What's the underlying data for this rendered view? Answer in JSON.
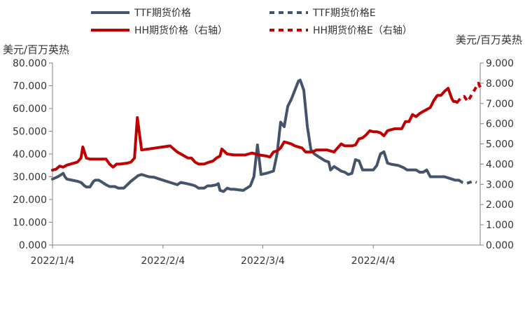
{
  "chart_data": {
    "type": "line",
    "legend": {
      "placement": "top",
      "entries": [
        {
          "label": "TTF期货价格",
          "color": "#44546A",
          "dashed": false
        },
        {
          "label": "TTF期货价格E",
          "color": "#44546A",
          "dashed": true
        },
        {
          "label": "HH期货价格（右轴）",
          "color": "#C00000",
          "dashed": false
        },
        {
          "label": "HH期货价格E（右轴）",
          "color": "#C00000",
          "dashed": true
        }
      ]
    },
    "ylabel_left": "美元/百万英热",
    "ylabel_right": "美元/百万英热",
    "ylim_left": [
      0,
      80
    ],
    "ylim_right": [
      0,
      9
    ],
    "yticks_left": [
      "0.000",
      "10.000",
      "20.000",
      "30.000",
      "40.000",
      "50.000",
      "60.000",
      "70.000",
      "80.000"
    ],
    "yticks_right": [
      "0.000",
      "1.000",
      "2.000",
      "3.000",
      "4.000",
      "5.000",
      "6.000",
      "7.000",
      "8.000",
      "9.000"
    ],
    "xlim_days": [
      0,
      120
    ],
    "xticks": [
      {
        "label": "2022/1/4",
        "day": 0
      },
      {
        "label": "2022/2/4",
        "day": 31
      },
      {
        "label": "2022/3/4",
        "day": 59
      },
      {
        "label": "2022/4/4",
        "day": 90
      }
    ],
    "grid": false,
    "series": [
      {
        "name": "TTF期货价格",
        "axis": "left",
        "color": "#44546A",
        "dashed": false,
        "points": [
          [
            0,
            29
          ],
          [
            1.5,
            30
          ],
          [
            2.5,
            31
          ],
          [
            3,
            31.5
          ],
          [
            3.5,
            30
          ],
          [
            4,
            29
          ],
          [
            7,
            28
          ],
          [
            8,
            27.5
          ],
          [
            9,
            26
          ],
          [
            9.5,
            25.5
          ],
          [
            10.5,
            25.5
          ],
          [
            11.5,
            28
          ],
          [
            12,
            28.5
          ],
          [
            13,
            28.5
          ],
          [
            14,
            27.5
          ],
          [
            15,
            26.5
          ],
          [
            16,
            25.7
          ],
          [
            17.5,
            25.7
          ],
          [
            18.5,
            25
          ],
          [
            20,
            25
          ],
          [
            22,
            28
          ],
          [
            24,
            30.5
          ],
          [
            25,
            31
          ],
          [
            26,
            30.5
          ],
          [
            27,
            30
          ],
          [
            28.5,
            29.8
          ],
          [
            30,
            29
          ],
          [
            33,
            27.5
          ],
          [
            35,
            26.5
          ],
          [
            36,
            27.5
          ],
          [
            37,
            27.2
          ],
          [
            39,
            26.5
          ],
          [
            40,
            26
          ],
          [
            41,
            25
          ],
          [
            42.5,
            25
          ],
          [
            43.5,
            26
          ],
          [
            44.5,
            26
          ],
          [
            46,
            26.5
          ],
          [
            46.5,
            27
          ],
          [
            47,
            24
          ],
          [
            48,
            23.5
          ],
          [
            49,
            25
          ],
          [
            50,
            24.5
          ],
          [
            51,
            24.5
          ],
          [
            53.5,
            24
          ],
          [
            54.5,
            25
          ],
          [
            55.5,
            26
          ],
          [
            56.5,
            30
          ],
          [
            57.5,
            44
          ],
          [
            58.5,
            31
          ],
          [
            60,
            31.5
          ],
          [
            61,
            32
          ],
          [
            62,
            32.5
          ],
          [
            63,
            40
          ],
          [
            64,
            54
          ],
          [
            65,
            52
          ],
          [
            66,
            61
          ],
          [
            67,
            64
          ],
          [
            68,
            68
          ],
          [
            69,
            72
          ],
          [
            69.5,
            72.5
          ],
          [
            70.5,
            68
          ],
          [
            71.5,
            52
          ],
          [
            72.5,
            42
          ],
          [
            73.5,
            40
          ],
          [
            74.5,
            39
          ],
          [
            75.5,
            38
          ],
          [
            76.5,
            37
          ],
          [
            77.5,
            36.5
          ],
          [
            78,
            33
          ],
          [
            79,
            34.5
          ],
          [
            80,
            33.5
          ],
          [
            81,
            32.5
          ],
          [
            82,
            32
          ],
          [
            83,
            31
          ],
          [
            84,
            31.5
          ],
          [
            85,
            37.5
          ],
          [
            86,
            37
          ],
          [
            87,
            33
          ],
          [
            88,
            33
          ],
          [
            89,
            33
          ],
          [
            90,
            33
          ],
          [
            91,
            35
          ],
          [
            92,
            40
          ],
          [
            93,
            41
          ],
          [
            94,
            36
          ],
          [
            95,
            35.5
          ],
          [
            97,
            35
          ],
          [
            98.5,
            34
          ],
          [
            99.5,
            33
          ],
          [
            101,
            33
          ],
          [
            102,
            33
          ],
          [
            103,
            32
          ],
          [
            104,
            32
          ],
          [
            105,
            33
          ],
          [
            106,
            30
          ],
          [
            107,
            30
          ],
          [
            108,
            30
          ],
          [
            109,
            30
          ],
          [
            110,
            30
          ],
          [
            111,
            29.5
          ],
          [
            112,
            29
          ],
          [
            113,
            28.5
          ],
          [
            114,
            28.5
          ]
        ]
      },
      {
        "name": "TTF期货价格E",
        "axis": "left",
        "color": "#44546A",
        "dashed": true,
        "points": [
          [
            114,
            28.5
          ],
          [
            115,
            27.5
          ],
          [
            116,
            27
          ],
          [
            117,
            27.5
          ],
          [
            118,
            28
          ],
          [
            119,
            27.5
          ]
        ]
      },
      {
        "name": "HH期货价格（右轴）",
        "axis": "right",
        "color": "#C00000",
        "dashed": false,
        "points": [
          [
            0,
            3.7
          ],
          [
            1,
            3.75
          ],
          [
            2,
            3.9
          ],
          [
            3,
            3.85
          ],
          [
            4,
            3.95
          ],
          [
            5,
            4.0
          ],
          [
            7,
            4.1
          ],
          [
            8,
            4.3
          ],
          [
            8.5,
            4.85
          ],
          [
            9.5,
            4.3
          ],
          [
            10.5,
            4.25
          ],
          [
            12,
            4.25
          ],
          [
            14,
            4.25
          ],
          [
            15,
            4.25
          ],
          [
            16,
            4.0
          ],
          [
            17,
            3.85
          ],
          [
            18,
            4.0
          ],
          [
            19,
            4.0
          ],
          [
            21,
            4.05
          ],
          [
            22,
            4.1
          ],
          [
            23,
            4.3
          ],
          [
            23.8,
            6.3
          ],
          [
            25,
            4.7
          ],
          [
            27,
            4.75
          ],
          [
            29,
            4.8
          ],
          [
            31,
            4.85
          ],
          [
            33,
            4.9
          ],
          [
            35,
            4.6
          ],
          [
            36,
            4.5
          ],
          [
            38,
            4.3
          ],
          [
            39,
            4.3
          ],
          [
            40,
            4.1
          ],
          [
            41,
            4.0
          ],
          [
            42.5,
            4.0
          ],
          [
            44,
            4.1
          ],
          [
            45,
            4.15
          ],
          [
            46,
            4.3
          ],
          [
            47,
            4.4
          ],
          [
            47.5,
            4.75
          ],
          [
            49,
            4.5
          ],
          [
            51,
            4.45
          ],
          [
            54,
            4.45
          ],
          [
            55,
            4.5
          ],
          [
            56,
            4.55
          ],
          [
            57,
            4.5
          ],
          [
            58,
            4.45
          ],
          [
            60,
            4.4
          ],
          [
            61,
            4.35
          ],
          [
            62,
            4.6
          ],
          [
            63,
            4.65
          ],
          [
            64,
            4.8
          ],
          [
            65,
            5.1
          ],
          [
            66,
            5.05
          ],
          [
            67,
            5.0
          ],
          [
            68,
            4.9
          ],
          [
            69,
            4.85
          ],
          [
            70,
            4.8
          ],
          [
            71,
            4.6
          ],
          [
            72,
            4.6
          ],
          [
            73,
            4.6
          ],
          [
            74,
            4.7
          ],
          [
            75,
            4.7
          ],
          [
            76,
            4.7
          ],
          [
            77,
            4.7
          ],
          [
            78,
            4.65
          ],
          [
            79,
            4.6
          ],
          [
            80,
            4.8
          ],
          [
            81,
            5.0
          ],
          [
            82,
            4.9
          ],
          [
            83,
            4.9
          ],
          [
            84,
            4.9
          ],
          [
            85,
            4.95
          ],
          [
            86,
            5.25
          ],
          [
            87,
            5.3
          ],
          [
            88,
            5.45
          ],
          [
            89,
            5.65
          ],
          [
            90,
            5.6
          ],
          [
            91,
            5.6
          ],
          [
            92,
            5.55
          ],
          [
            93,
            5.4
          ],
          [
            94,
            5.65
          ],
          [
            95,
            5.7
          ],
          [
            96,
            5.75
          ],
          [
            97,
            5.75
          ],
          [
            98,
            5.75
          ],
          [
            99,
            6.1
          ],
          [
            100,
            6.1
          ],
          [
            101,
            6.45
          ],
          [
            102,
            6.35
          ],
          [
            103,
            6.5
          ],
          [
            104,
            6.6
          ],
          [
            105,
            6.7
          ],
          [
            106,
            6.8
          ],
          [
            107,
            7.15
          ],
          [
            108,
            7.4
          ],
          [
            109,
            7.4
          ],
          [
            110,
            7.6
          ],
          [
            111,
            7.75
          ],
          [
            112,
            7.25
          ],
          [
            112.5,
            7.1
          ],
          [
            113,
            7.1
          ],
          [
            113.5,
            7.05
          ]
        ]
      },
      {
        "name": "HH期货价格E（右轴）",
        "axis": "right",
        "color": "#C00000",
        "dashed": true,
        "points": [
          [
            113.5,
            7.05
          ],
          [
            114.5,
            7.25
          ],
          [
            115.5,
            7.35
          ],
          [
            116.5,
            7.1
          ],
          [
            117.5,
            7.4
          ],
          [
            118.5,
            7.7
          ],
          [
            119.5,
            8.0
          ],
          [
            120,
            7.8
          ]
        ]
      }
    ]
  }
}
